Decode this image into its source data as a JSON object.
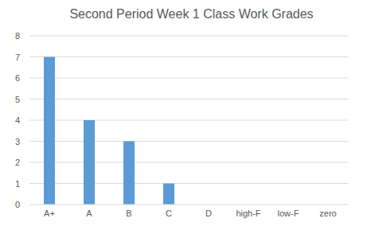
{
  "chart_data": {
    "type": "bar",
    "title": "Second Period Week 1 Class Work Grades",
    "categories": [
      "A+",
      "A",
      "B",
      "C",
      "D",
      "high-F",
      "low-F",
      "zero"
    ],
    "values": [
      7,
      4,
      3,
      1,
      0,
      0,
      0,
      0
    ],
    "color": "#5b9bd5",
    "ylim": [
      0,
      8
    ],
    "yticks": [
      0,
      1,
      2,
      3,
      4,
      5,
      6,
      7,
      8
    ],
    "grid": true
  }
}
